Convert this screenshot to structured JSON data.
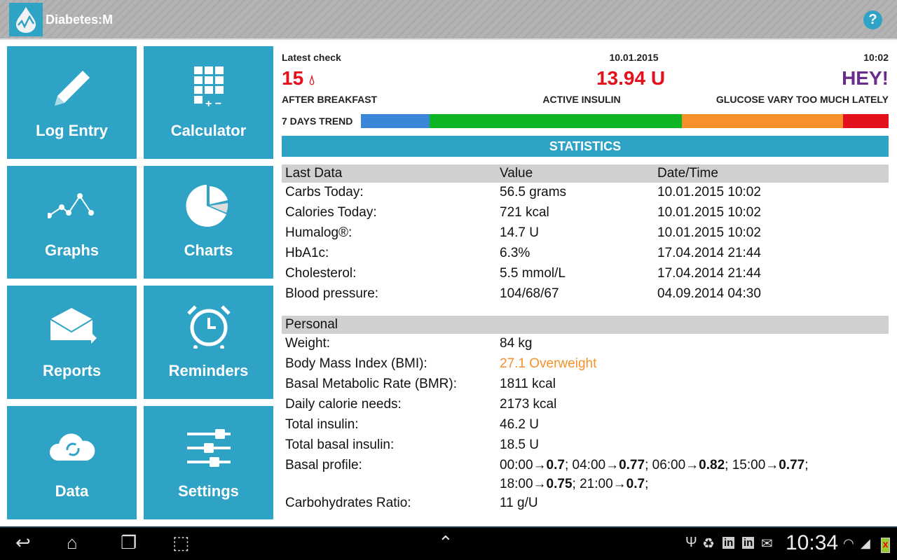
{
  "app": {
    "title": "Diabetes:M",
    "help_icon": "question-icon"
  },
  "tiles": [
    {
      "label": "Log Entry",
      "icon": "pencil-icon"
    },
    {
      "label": "Calculator",
      "icon": "calculator-icon"
    },
    {
      "label": "Graphs",
      "icon": "line-graph-icon"
    },
    {
      "label": "Charts",
      "icon": "pie-chart-icon"
    },
    {
      "label": "Reports",
      "icon": "envelope-icon"
    },
    {
      "label": "Reminders",
      "icon": "alarm-clock-icon"
    },
    {
      "label": "Data",
      "icon": "cloud-sync-icon"
    },
    {
      "label": "Settings",
      "icon": "sliders-icon"
    }
  ],
  "summary": {
    "latest_label": "Latest check",
    "date": "10.01.2015",
    "time": "10:02",
    "glucose": "15",
    "glucose_label": "AFTER BREAKFAST",
    "insulin": "13.94 U",
    "insulin_label": "ACTIVE INSULIN",
    "alert": "HEY!",
    "alert_label": "GLUCOSE VARY TOO MUCH LATELY",
    "trend_label": "7 DAYS TREND",
    "trend": [
      {
        "color": "#3a86d8",
        "percent": 13
      },
      {
        "color": "#0db524",
        "percent": 47.8
      },
      {
        "color": "#f5902a",
        "percent": 30.6
      },
      {
        "color": "#e4101c",
        "percent": 8.6
      }
    ]
  },
  "statistics": {
    "title": "STATISTICS",
    "last_data": {
      "headers": [
        "Last Data",
        "Value",
        "Date/Time"
      ],
      "rows": [
        [
          "Carbs Today:",
          "56.5 grams",
          "10.01.2015 10:02"
        ],
        [
          "Calories Today:",
          "721 kcal",
          "10.01.2015 10:02"
        ],
        [
          "Humalog®:",
          "14.7 U",
          "10.01.2015 10:02"
        ],
        [
          "HbA1c:",
          "6.3%",
          "17.04.2014 21:44"
        ],
        [
          "Cholesterol:",
          "5.5 mmol/L",
          "17.04.2014 21:44"
        ],
        [
          "Blood pressure:",
          "104/68/67",
          "04.09.2014 04:30"
        ]
      ]
    },
    "personal": {
      "header": "Personal",
      "rows": [
        [
          "Weight:",
          "84 kg"
        ],
        [
          "Body Mass Index (BMI):",
          "27.1 Overweight"
        ],
        [
          "Basal Metabolic Rate (BMR):",
          "1811 kcal"
        ],
        [
          "Daily calorie needs:",
          "2173 kcal"
        ],
        [
          "Total insulin:",
          "46.2 U"
        ],
        [
          "Total basal insulin:",
          "18.5 U"
        ]
      ],
      "bmi_color": "#f5902a",
      "basal_label": "Basal profile:",
      "basal_profile": [
        [
          "00:00",
          "0.7"
        ],
        [
          "04:00",
          "0.77"
        ],
        [
          "06:00",
          "0.82"
        ],
        [
          "15:00",
          "0.77"
        ],
        [
          "18:00",
          "0.75"
        ],
        [
          "21:00",
          "0.7"
        ]
      ],
      "carb_ratio_label": "Carbohydrates Ratio:",
      "carb_ratio": "11 g/U"
    }
  },
  "statusbar": {
    "time": "10:34"
  }
}
